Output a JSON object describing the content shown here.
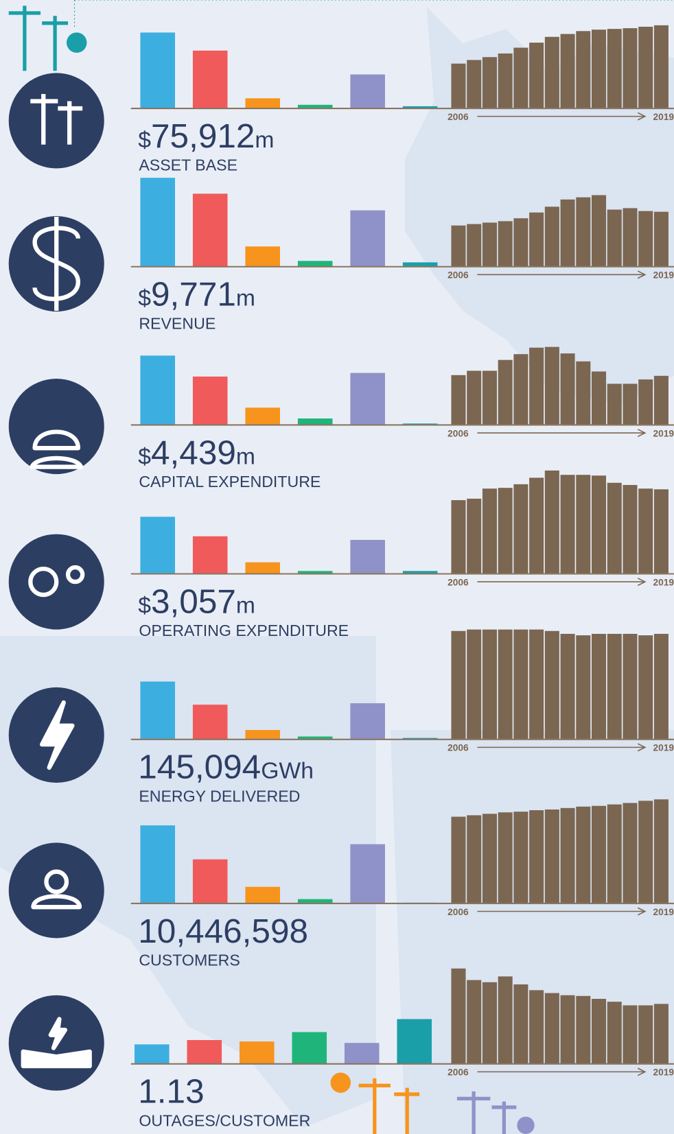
{
  "chart_data": [
    {
      "type": "bar",
      "values": [
        105,
        80,
        14,
        5,
        47,
        3
      ],
      "colors": [
        "#3daee0",
        "#f05a5a",
        "#f7941d",
        "#1fb57a",
        "#8f92c8",
        "#1a9fa8"
      ],
      "ylim": [
        0,
        160
      ]
    },
    {
      "type": "bar",
      "categories": [
        "2006",
        null,
        null,
        null,
        null,
        null,
        null,
        null,
        null,
        null,
        null,
        null,
        null,
        "2019"
      ],
      "values": [
        62,
        67,
        71,
        76,
        84,
        91,
        99,
        103,
        107,
        109,
        110,
        111,
        113,
        115
      ],
      "color": "#7b6651",
      "ylim": [
        0,
        160
      ]
    },
    {
      "type": "bar",
      "values": [
        123,
        101,
        28,
        8,
        78,
        6
      ],
      "colors": [
        "#3daee0",
        "#f05a5a",
        "#f7941d",
        "#1fb57a",
        "#8f92c8",
        "#1a9fa8"
      ],
      "ylim": [
        0,
        160
      ]
    },
    {
      "type": "bar",
      "categories": [
        "2006",
        null,
        null,
        null,
        null,
        null,
        null,
        null,
        null,
        null,
        null,
        null,
        null,
        "2019"
      ],
      "values": [
        57,
        59,
        61,
        63,
        67,
        75,
        83,
        93,
        96,
        99,
        79,
        81,
        77,
        76
      ],
      "color": "#7b6651",
      "ylim": [
        0,
        160
      ]
    },
    {
      "type": "bar",
      "values": [
        96,
        67,
        24,
        9,
        72,
        2
      ],
      "colors": [
        "#3daee0",
        "#f05a5a",
        "#f7941d",
        "#1fb57a",
        "#8f92c8",
        "#1a9fa8"
      ],
      "ylim": [
        0,
        160
      ]
    },
    {
      "type": "bar",
      "categories": [
        "2006",
        null,
        null,
        null,
        null,
        null,
        null,
        null,
        null,
        null,
        null,
        null,
        null,
        "2019"
      ],
      "values": [
        69,
        75,
        75,
        90,
        98,
        107,
        108,
        99,
        88,
        74,
        57,
        57,
        63,
        68
      ],
      "color": "#7b6651",
      "ylim": [
        0,
        160
      ]
    },
    {
      "type": "bar",
      "values": [
        79,
        52,
        16,
        4,
        47,
        4
      ],
      "colors": [
        "#3daee0",
        "#f05a5a",
        "#f7941d",
        "#1fb57a",
        "#8f92c8",
        "#1a9fa8"
      ],
      "ylim": [
        0,
        160
      ]
    },
    {
      "type": "bar",
      "categories": [
        "2006",
        null,
        null,
        null,
        null,
        null,
        null,
        null,
        null,
        null,
        null,
        null,
        null,
        "2019"
      ],
      "values": [
        102,
        104,
        118,
        119,
        124,
        133,
        143,
        137,
        137,
        136,
        126,
        123,
        118,
        117
      ],
      "color": "#7b6651",
      "ylim": [
        0,
        160
      ]
    },
    {
      "type": "bar",
      "values": [
        80,
        48,
        13,
        4,
        50,
        2
      ],
      "colors": [
        "#3daee0",
        "#f05a5a",
        "#f7941d",
        "#1fb57a",
        "#8f92c8",
        "#1a9fa8"
      ],
      "ylim": [
        0,
        160
      ]
    },
    {
      "type": "bar",
      "categories": [
        "2006",
        null,
        null,
        null,
        null,
        null,
        null,
        null,
        null,
        null,
        null,
        null,
        null,
        "2019"
      ],
      "values": [
        150,
        152,
        152,
        152,
        152,
        152,
        150,
        146,
        144,
        146,
        146,
        146,
        144,
        146
      ],
      "color": "#7b6651",
      "ylim": [
        0,
        160
      ]
    },
    {
      "type": "bar",
      "values": [
        108,
        61,
        23,
        6,
        82,
        1
      ],
      "colors": [
        "#3daee0",
        "#f05a5a",
        "#f7941d",
        "#1fb57a",
        "#8f92c8",
        "#1a9fa8"
      ],
      "ylim": [
        0,
        160
      ]
    },
    {
      "type": "bar",
      "categories": [
        "2006",
        null,
        null,
        null,
        null,
        null,
        null,
        null,
        null,
        null,
        null,
        null,
        null,
        "2019"
      ],
      "values": [
        120,
        122,
        124,
        126,
        127,
        129,
        130,
        132,
        134,
        135,
        137,
        139,
        142,
        144
      ],
      "color": "#7b6651",
      "ylim": [
        0,
        160
      ]
    },
    {
      "type": "bar",
      "values": [
        27,
        33,
        31,
        44,
        29,
        62
      ],
      "colors": [
        "#3daee0",
        "#f05a5a",
        "#f7941d",
        "#1fb57a",
        "#8f92c8",
        "#1a9fa8"
      ],
      "ylim": [
        0,
        160
      ]
    },
    {
      "type": "bar",
      "categories": [
        "2006",
        null,
        null,
        null,
        null,
        null,
        null,
        null,
        null,
        null,
        null,
        null,
        null,
        "2019"
      ],
      "values": [
        132,
        116,
        113,
        121,
        110,
        102,
        98,
        95,
        94,
        90,
        86,
        81,
        81,
        83
      ],
      "color": "#7b6651",
      "ylim": [
        0,
        160
      ]
    }
  ],
  "headlines": [
    {
      "prefix": "$",
      "number": "75,912",
      "unit": "m",
      "label": "ASSET BASE"
    },
    {
      "prefix": "$",
      "number": "9,771",
      "unit": "m",
      "label": "REVENUE"
    },
    {
      "prefix": "$",
      "number": "4,439",
      "unit": "m",
      "label": "CAPITAL EXPENDITURE"
    },
    {
      "prefix": "$",
      "number": "3,057",
      "unit": "m",
      "label": "OPERATING EXPENDITURE"
    },
    {
      "number": "145,094",
      "unit": "GWh",
      "label": "ENERGY DELIVERED"
    },
    {
      "number": "10,446,598",
      "label": "CUSTOMERS"
    },
    {
      "number": "1.13",
      "label": "OUTAGES/CUSTOMER"
    }
  ]
}
